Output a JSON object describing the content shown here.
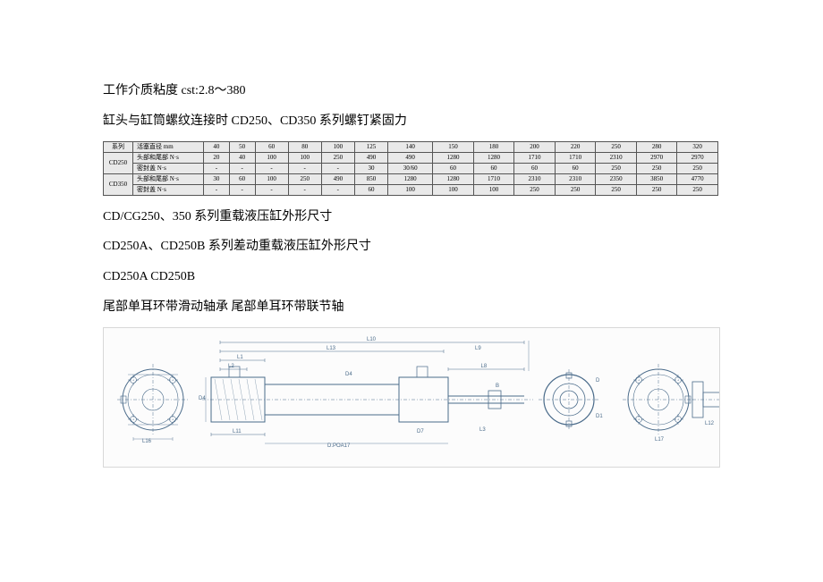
{
  "text": {
    "viscosity": "工作介质粘度 cst:2.8～380",
    "torque_title": "缸头与缸筒螺纹连接时 CD250、CD350 系列螺钉紧固力",
    "dims_title": "CD/CG250、350 系列重载液压缸外形尺寸",
    "diff_title": "CD250A、CD250B 系列差动重载液压缸外形尺寸",
    "models": "CD250A CD250B",
    "bearing_title": "尾部单耳环带滑动轴承  尾部单耳环带联节轴"
  },
  "table": {
    "series_header": "系列",
    "diameter_header": "活塞直径      mm",
    "diameters": [
      "40",
      "50",
      "60",
      "80",
      "100",
      "125",
      "140",
      "150",
      "180",
      "200",
      "220",
      "250",
      "280",
      "320"
    ],
    "rows": [
      {
        "group": "CD250",
        "label": "头部和尾部 N·s",
        "vals": [
          "20",
          "40",
          "100",
          "100",
          "250",
          "490",
          "490",
          "1280",
          "1280",
          "1710",
          "1710",
          "2310",
          "2970",
          "2970"
        ]
      },
      {
        "group": "CD250",
        "label": "密封盖        N·s",
        "vals": [
          "-",
          "-",
          "-",
          "-",
          "-",
          "30",
          "30/60",
          "60",
          "60",
          "60",
          "60",
          "250",
          "250",
          "250"
        ]
      },
      {
        "group": "CD350",
        "label": "头部和尾部 N·s",
        "vals": [
          "30",
          "60",
          "100",
          "250",
          "490",
          "850",
          "1280",
          "1280",
          "1710",
          "2310",
          "2310",
          "2350",
          "3850",
          "4770"
        ]
      },
      {
        "group": "CD350",
        "label": "密封盖        N·s",
        "vals": [
          "-",
          "-",
          "-",
          "-",
          "-",
          "60",
          "100",
          "100",
          "100",
          "250",
          "250",
          "250",
          "250",
          "250"
        ]
      }
    ]
  },
  "diagram": {
    "stroke": "#4a6b8a",
    "fill_bg": "#fcfcfc",
    "labels": {
      "L10": "L10",
      "L13": "L13",
      "L9": "L9",
      "L1": "L1",
      "L2": "L2",
      "L16": "L16",
      "L11": "L11",
      "L12": "L12",
      "L8": "L8",
      "D2": "D2",
      "D4": "D4",
      "D7": "D7",
      "D": "D",
      "D1": "D1",
      "B": "B",
      "L3": "L3",
      "D_POA17": "D.POA17"
    }
  },
  "style": {
    "page_bg": "#ffffff",
    "text_color": "#000000",
    "table_cell_bg": "#e9e9e9",
    "table_border": "#555555"
  }
}
